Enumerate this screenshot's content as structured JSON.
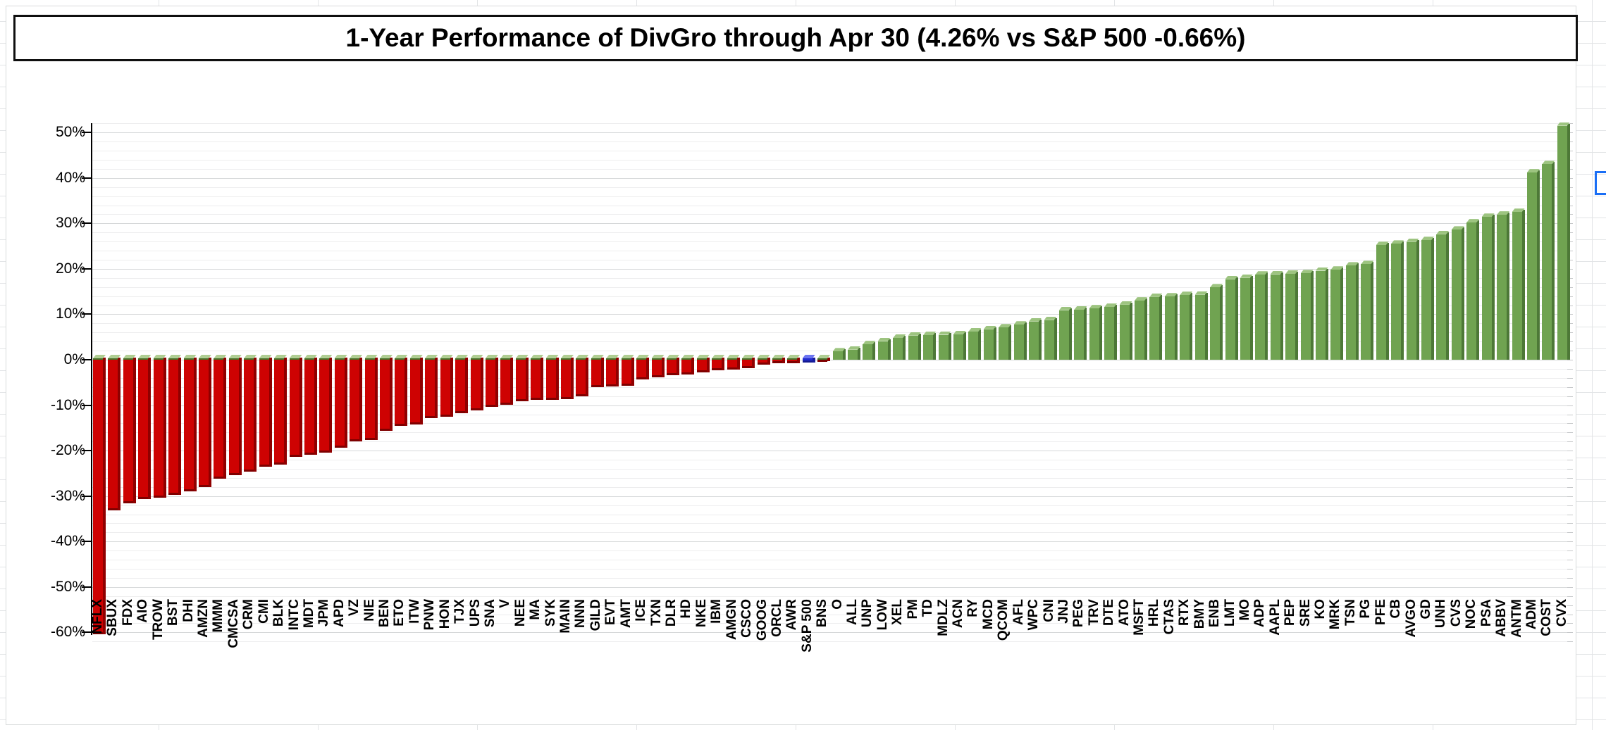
{
  "chart_data": {
    "type": "bar",
    "title": "1-Year Performance of DivGro through Apr 30 (4.26% vs S&P 500 -0.66%)",
    "xlabel": "",
    "ylabel": "",
    "ylim": [
      -62,
      53
    ],
    "grid": "minor gridlines every 2%, major every 10%",
    "legend": "none",
    "benchmark_ticker": "S&P 500",
    "benchmark_value": -0.66,
    "portfolio_return_label": "4.26%",
    "ytick_labels": [
      "50%",
      "40%",
      "30%",
      "20%",
      "10%",
      "0%",
      "-10%",
      "-20%",
      "-30%",
      "-40%",
      "-50%",
      "-60%"
    ],
    "ytick_values": [
      50,
      40,
      30,
      20,
      10,
      0,
      -10,
      -20,
      -30,
      -40,
      -50,
      -60
    ],
    "bar_colors": {
      "negative": "#ce0202",
      "positive": "#70a351",
      "benchmark": "#2431e8",
      "negative_cap": "#afcd92"
    },
    "categories": [
      "NFLX",
      "SBUX",
      "FDX",
      "AIO",
      "TROW",
      "BST",
      "DHI",
      "AMZN",
      "MMM",
      "CMCSA",
      "CRM",
      "CMI",
      "BLK",
      "INTC",
      "MDT",
      "JPM",
      "APD",
      "VZ",
      "NIE",
      "BEN",
      "ETO",
      "ITW",
      "PNW",
      "HON",
      "TJX",
      "UPS",
      "SNA",
      "V",
      "NEE",
      "MA",
      "SYK",
      "MAIN",
      "NNN",
      "GILD",
      "EVT",
      "AMT",
      "ICE",
      "TXN",
      "DLR",
      "HD",
      "NKE",
      "IBM",
      "AMGN",
      "CSCO",
      "GOOG",
      "ORCL",
      "AWR",
      "S&P 500",
      "BNS",
      "O",
      "ALL",
      "UNP",
      "LOW",
      "XEL",
      "PM",
      "TD",
      "MDLZ",
      "ACN",
      "RY",
      "MCD",
      "QCOM",
      "AFL",
      "WPC",
      "CNI",
      "JNJ",
      "PEG",
      "TRV",
      "DTE",
      "ATO",
      "MSFT",
      "HRL",
      "CTAS",
      "RTX",
      "BMY",
      "ENB",
      "LMT",
      "MO",
      "ADP",
      "AAPL",
      "PEP",
      "SRE",
      "KO",
      "MRK",
      "TSN",
      "PG",
      "PFE",
      "CB",
      "AVGO",
      "GD",
      "UNH",
      "CVS",
      "NOC",
      "PSA",
      "ABBV",
      "ANTM",
      "ADM",
      "COST",
      "CVX"
    ],
    "values": [
      -60.4,
      -33.2,
      -31.6,
      -30.7,
      -30.3,
      -29.7,
      -28.9,
      -28.1,
      -26.1,
      -25.4,
      -24.6,
      -23.5,
      -23.1,
      -21.4,
      -20.9,
      -20.4,
      -19.3,
      -17.9,
      -17.6,
      -15.7,
      -14.5,
      -14.2,
      -12.9,
      -12.5,
      -11.7,
      -11.2,
      -10.3,
      -9.9,
      -9.1,
      -8.9,
      -8.8,
      -8.6,
      -8.0,
      -6.1,
      -5.9,
      -5.7,
      -4.4,
      -3.9,
      -3.4,
      -3.3,
      -2.8,
      -2.3,
      -2.1,
      -1.8,
      -1.0,
      -0.8,
      -0.7,
      -0.66,
      -0.3,
      1.8,
      2.2,
      3.4,
      4.1,
      4.8,
      5.3,
      5.4,
      5.5,
      5.6,
      6.2,
      6.7,
      7.1,
      7.7,
      8.4,
      8.7,
      10.9,
      11.0,
      11.3,
      11.6,
      12.1,
      13.0,
      13.8,
      13.9,
      14.2,
      14.3,
      15.9,
      17.7,
      18.0,
      18.7,
      18.8,
      18.9,
      19.0,
      19.6,
      19.8,
      20.7,
      21.0,
      25.2,
      25.5,
      25.9,
      26.3,
      27.6,
      28.6,
      30.2,
      31.4,
      31.9,
      32.5,
      41.2,
      43.0,
      51.5
    ],
    "colors": [
      "r",
      "r",
      "r",
      "r",
      "r",
      "r",
      "r",
      "r",
      "r",
      "r",
      "r",
      "r",
      "r",
      "r",
      "r",
      "r",
      "r",
      "r",
      "r",
      "r",
      "r",
      "r",
      "r",
      "r",
      "r",
      "r",
      "r",
      "r",
      "r",
      "r",
      "r",
      "r",
      "r",
      "r",
      "r",
      "r",
      "r",
      "r",
      "r",
      "r",
      "r",
      "r",
      "r",
      "r",
      "r",
      "r",
      "r",
      "b",
      "r",
      "g",
      "g",
      "g",
      "g",
      "g",
      "g",
      "g",
      "g",
      "g",
      "g",
      "g",
      "g",
      "g",
      "g",
      "g",
      "g",
      "g",
      "g",
      "g",
      "g",
      "g",
      "g",
      "g",
      "g",
      "g",
      "g",
      "g",
      "g",
      "g",
      "g",
      "g",
      "g",
      "g",
      "g",
      "g",
      "g",
      "g",
      "g",
      "g",
      "g",
      "g",
      "g",
      "g",
      "g",
      "g",
      "g",
      "g",
      "g",
      "g"
    ]
  },
  "spreadsheet": {
    "selection_outline_color": "#1a6ef5"
  }
}
